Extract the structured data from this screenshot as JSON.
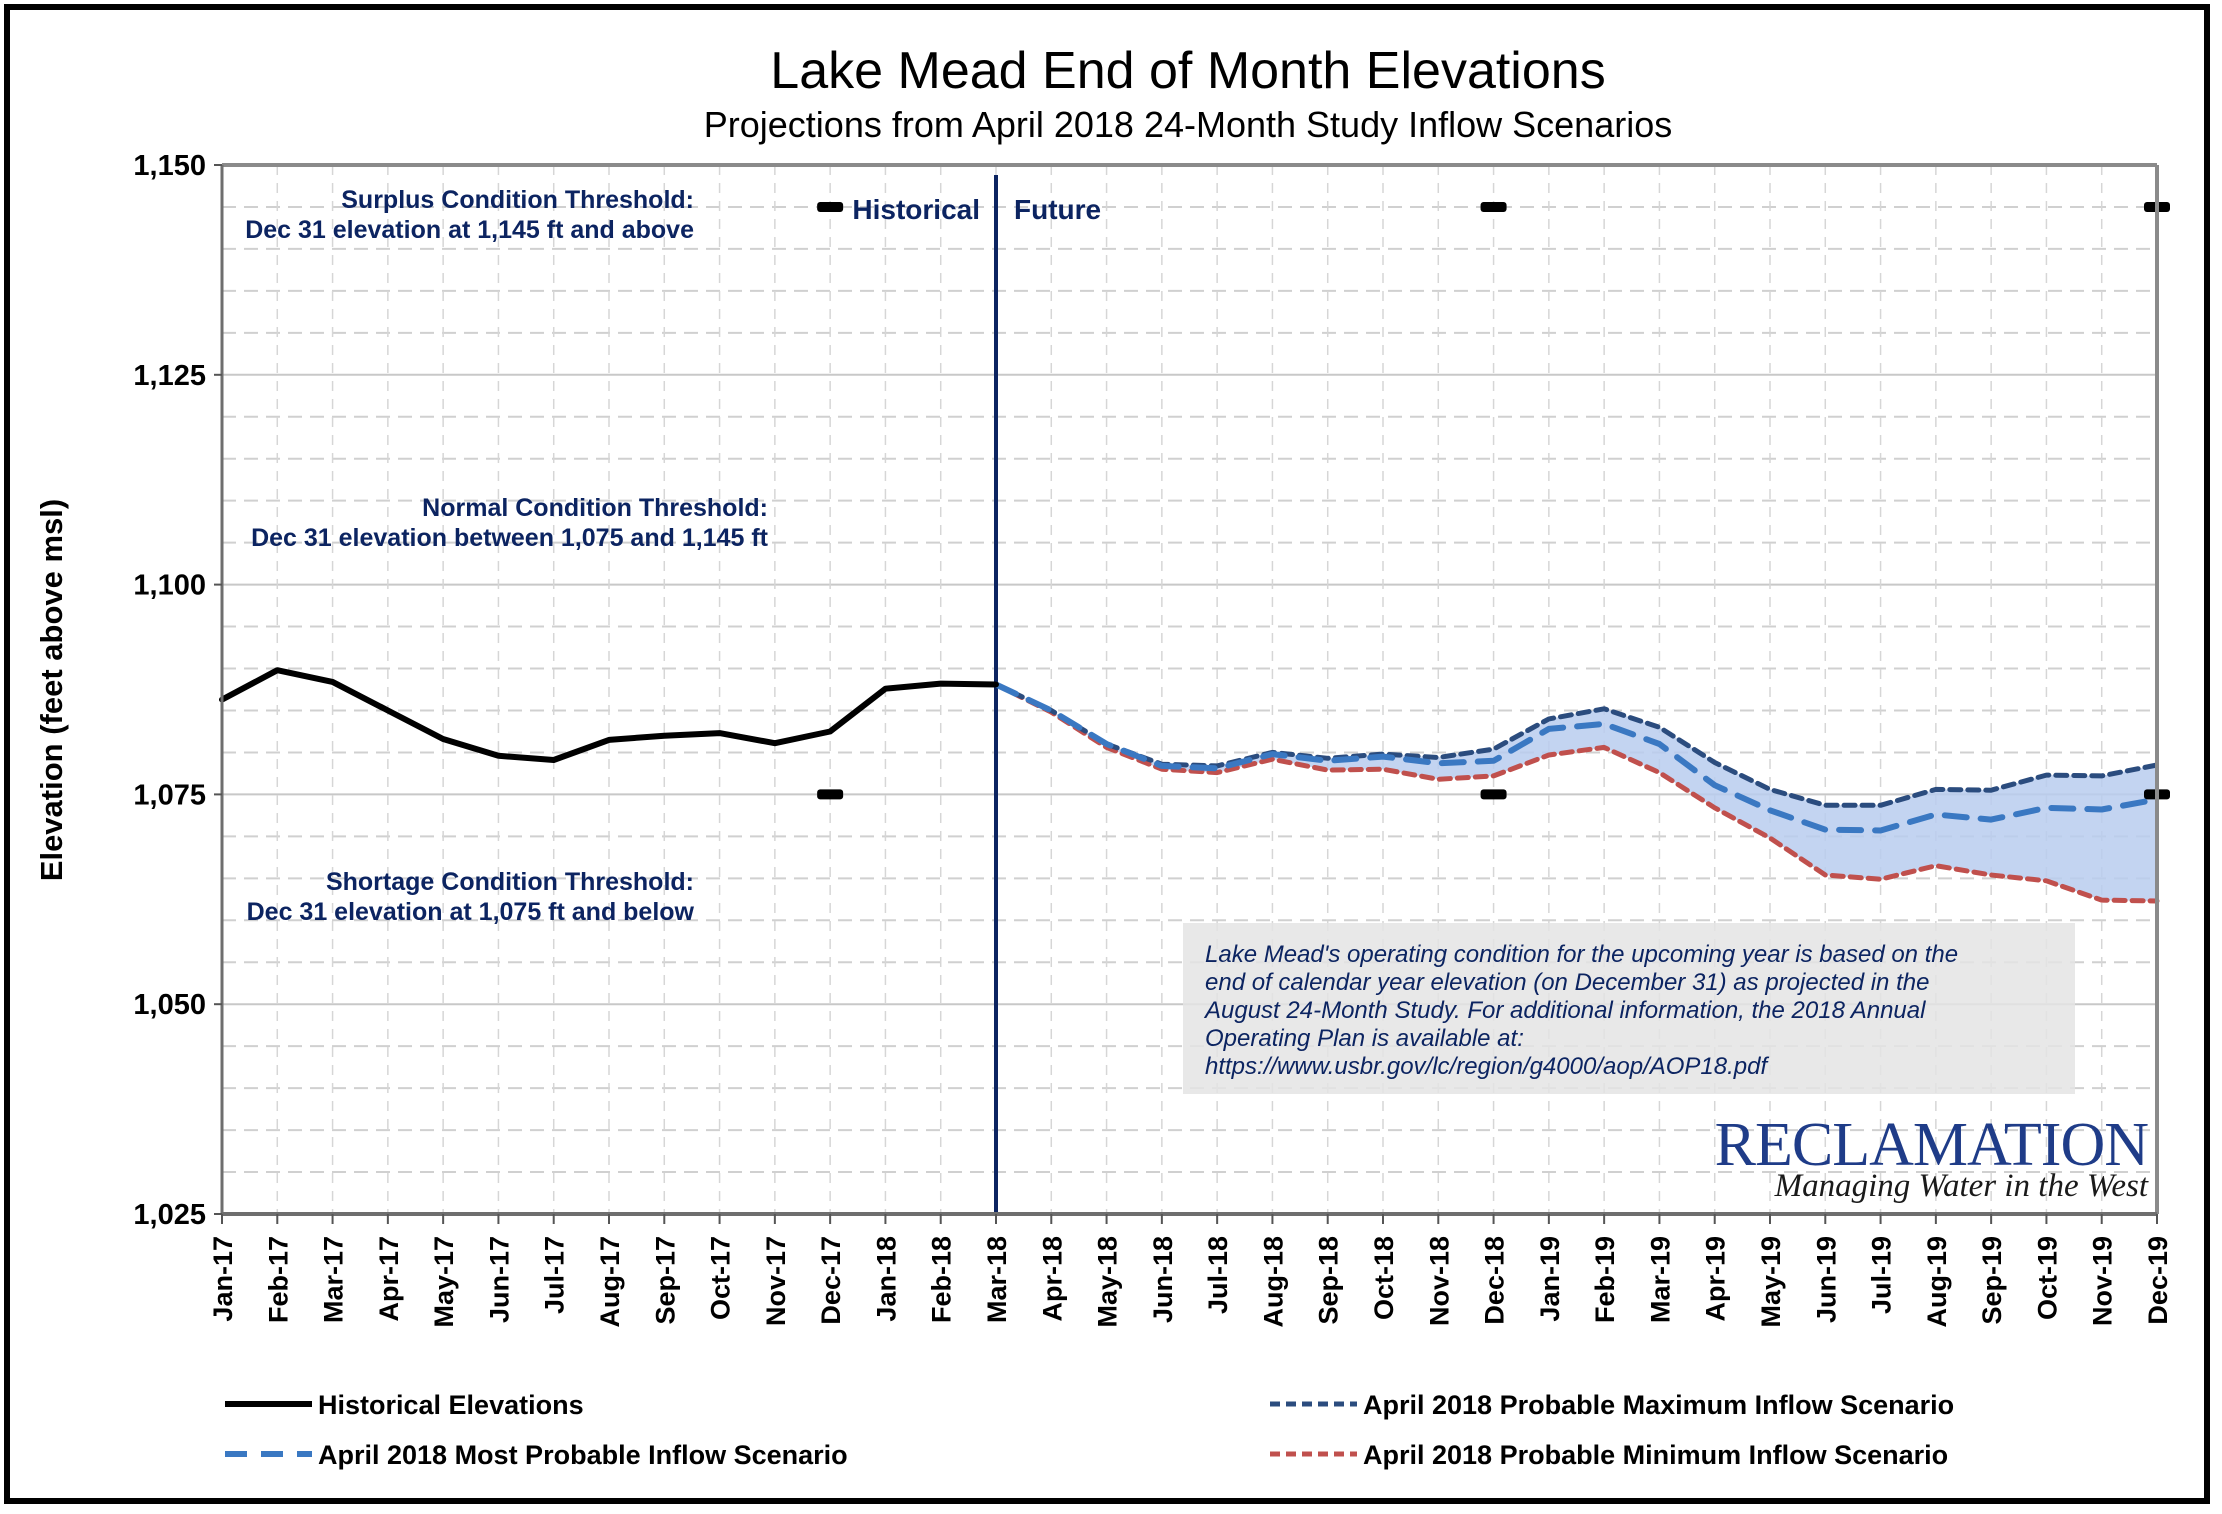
{
  "chart_data": {
    "type": "line",
    "title": "Lake Mead End of Month Elevations",
    "subtitle": "Projections from April 2018 24-Month Study Inflow Scenarios",
    "ylabel": "Elevation (feet above msl)",
    "xlabel": "",
    "ylim": [
      1025,
      1150
    ],
    "yticks": [
      1025,
      1050,
      1075,
      1100,
      1125,
      1150
    ],
    "ytick_labels": [
      "1,025",
      "1,050",
      "1,075",
      "1,100",
      "1,125",
      "1,150"
    ],
    "y_minor_step": 5,
    "grid": true,
    "categories": [
      "Jan-17",
      "Feb-17",
      "Mar-17",
      "Apr-17",
      "May-17",
      "Jun-17",
      "Jul-17",
      "Aug-17",
      "Sep-17",
      "Oct-17",
      "Nov-17",
      "Dec-17",
      "Jan-18",
      "Feb-18",
      "Mar-18",
      "Apr-18",
      "May-18",
      "Jun-18",
      "Jul-18",
      "Aug-18",
      "Sep-18",
      "Oct-18",
      "Nov-18",
      "Dec-18",
      "Jan-19",
      "Feb-19",
      "Mar-19",
      "Apr-19",
      "May-19",
      "Jun-19",
      "Jul-19",
      "Aug-19",
      "Sep-19",
      "Oct-19",
      "Nov-19",
      "Dec-19"
    ],
    "series": [
      {
        "name": "Historical Elevations",
        "color": "#000000",
        "style": "solid",
        "start_index": 0,
        "values": [
          1086.3,
          1089.8,
          1088.4,
          1085.0,
          1081.6,
          1079.6,
          1079.1,
          1081.5,
          1082.0,
          1082.3,
          1081.1,
          1082.5,
          1087.6,
          1088.2,
          1088.1
        ]
      },
      {
        "name": "April 2018 Probable Maximum Inflow Scenario",
        "color": "#2b4c7e",
        "style": "dashed",
        "start_index": 14,
        "values": [
          1088.1,
          1085.0,
          1081.0,
          1078.6,
          1078.4,
          1080.0,
          1079.3,
          1079.8,
          1079.4,
          1080.4,
          1084.0,
          1085.2,
          1083.0,
          1078.8,
          1075.6,
          1073.7,
          1073.7,
          1075.6,
          1075.5,
          1077.3,
          1077.2,
          1078.5
        ]
      },
      {
        "name": "April 2018 Most Probable Inflow Scenario",
        "color": "#3a78c2",
        "style": "long-dash",
        "start_index": 14,
        "values": [
          1088.1,
          1085.0,
          1081.0,
          1078.4,
          1078.1,
          1079.8,
          1079.0,
          1079.5,
          1078.7,
          1079.0,
          1082.8,
          1083.4,
          1081.0,
          1076.1,
          1073.1,
          1070.8,
          1070.7,
          1072.6,
          1072.0,
          1073.4,
          1073.2,
          1074.4
        ]
      },
      {
        "name": "April 2018 Probable Minimum Inflow Scenario",
        "color": "#c0504d",
        "style": "dashed",
        "start_index": 14,
        "values": [
          1088.1,
          1084.8,
          1080.6,
          1078.0,
          1077.6,
          1079.2,
          1077.9,
          1078.0,
          1076.8,
          1077.2,
          1079.7,
          1080.6,
          1077.6,
          1073.4,
          1069.8,
          1065.4,
          1064.9,
          1066.5,
          1065.4,
          1064.7,
          1062.4,
          1062.3
        ]
      }
    ],
    "band": {
      "between": [
        "April 2018 Probable Maximum Inflow Scenario",
        "April 2018 Probable Minimum Inflow Scenario"
      ],
      "color": "#b9cdee"
    },
    "divider": {
      "at": "Mar-18",
      "left_label": "Historical",
      "right_label": "Future",
      "color": "#0c2461"
    },
    "threshold_markers": [
      {
        "month": "Dec-17",
        "value": 1145
      },
      {
        "month": "Dec-17",
        "value": 1075
      },
      {
        "month": "Dec-18",
        "value": 1145
      },
      {
        "month": "Dec-18",
        "value": 1075
      },
      {
        "month": "Dec-19",
        "value": 1145
      },
      {
        "month": "Dec-19",
        "value": 1075
      }
    ],
    "annotations": {
      "surplus": [
        "Surplus Condition Threshold:",
        "Dec 31 elevation at 1,145 ft and above"
      ],
      "normal": [
        "Normal Condition Threshold:",
        "Dec 31 elevation between 1,075 and 1,145 ft"
      ],
      "shortage": [
        "Shortage  Condition Threshold:",
        "Dec 31 elevation at 1,075 ft and below"
      ],
      "note": [
        "Lake Mead's operating condition for the upcoming year is based on the",
        "end of calendar year elevation (on December 31) as projected in the",
        "August 24-Month Study. For additional information, the 2018 Annual",
        "Operating Plan is available at:",
        "https://www.usbr.gov/lc/region/g4000/aop/AOP18.pdf"
      ]
    },
    "legend": {
      "placement": "bottom",
      "entries": [
        "Historical Elevations",
        "April 2018 Probable Maximum Inflow Scenario",
        "April 2018 Most Probable Inflow Scenario",
        "April 2018 Probable Minimum Inflow Scenario"
      ]
    }
  },
  "logo": {
    "name": "RECLAMATION",
    "tagline": "Managing Water in the West"
  }
}
